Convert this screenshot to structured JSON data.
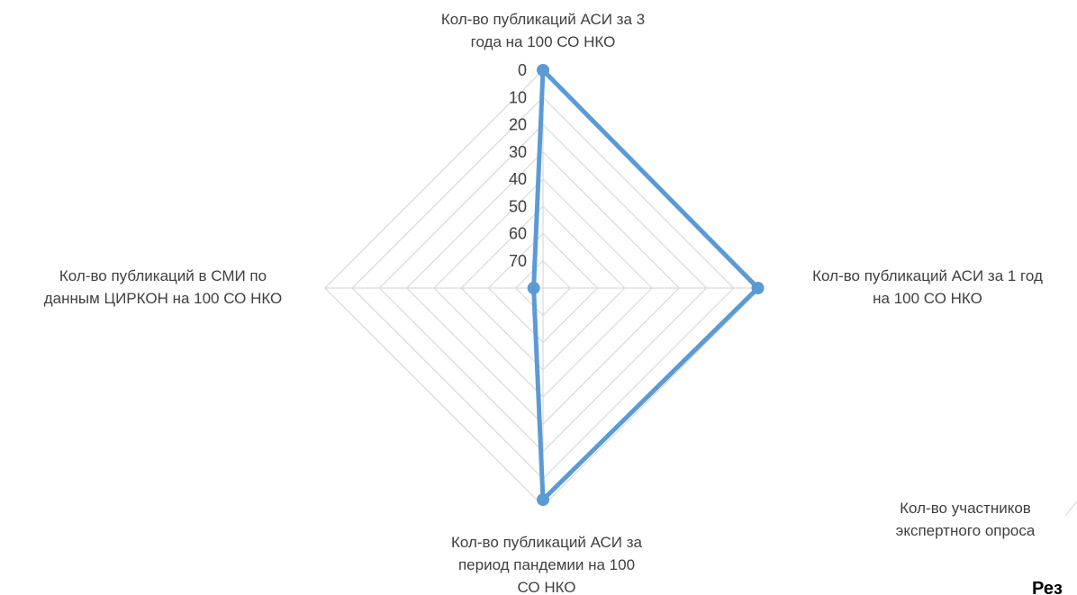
{
  "chart_data": {
    "type": "radar",
    "categories": [
      "Кол-во публикаций АСИ за 3 года на 100 СО НКО",
      "Кол-во публикаций АСИ за 1 год на 100 СО НКО",
      "Кол-во публикаций АСИ за период пандемии на 100 СО НКО",
      "Кол-во публикаций в СМИ по данным ЦИРКОН на 100 СО НКО"
    ],
    "category_lines": [
      [
        "Кол-во публикаций АСИ за 3",
        "года на 100 СО НКО"
      ],
      [
        "Кол-во публикаций АСИ за 1 год",
        "на 100 СО НКО"
      ],
      [
        "Кол-во публикаций АСИ за",
        "период пандемии на 100",
        "СО НКО"
      ],
      [
        "Кол-во публикаций в СМИ по",
        "данным ЦИРКОН на 100 СО НКО"
      ]
    ],
    "series": [
      {
        "values": [
          0,
          1,
          2,
          67
        ],
        "color": "#5b9bd5"
      }
    ],
    "axis_ticks": [
      "0",
      "10",
      "20",
      "30",
      "40",
      "50",
      "60",
      "70"
    ],
    "reversed_axis": true,
    "rlim": [
      0,
      70
    ],
    "grid": true,
    "grid_color": "#d9d9d9"
  },
  "neighbor_chart_fragment": {
    "label_lines": [
      "Кол-во участников",
      "экспертного опроса"
    ],
    "title_fragment": "Рез"
  }
}
